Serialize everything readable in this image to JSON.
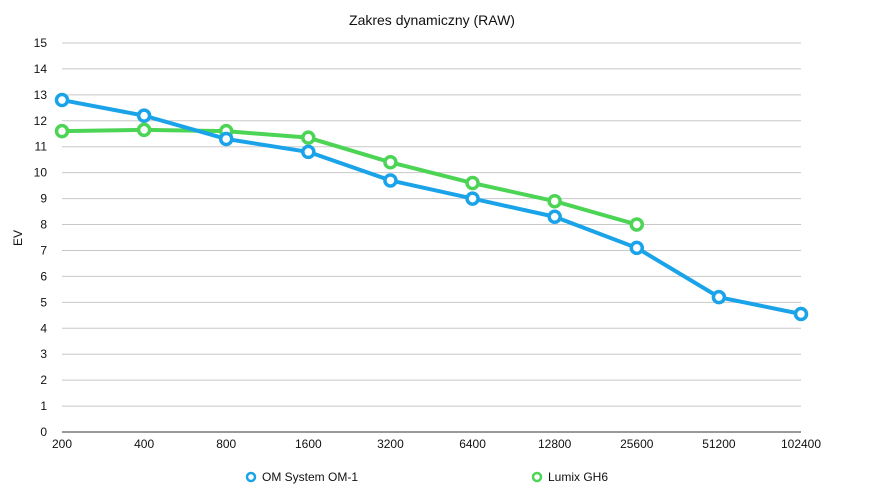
{
  "chart_data": {
    "type": "line",
    "title": "Zakres dynamiczny (RAW)",
    "xlabel": "",
    "ylabel": "EV",
    "ylim": [
      0,
      15
    ],
    "yticks": [
      0,
      1,
      2,
      3,
      4,
      5,
      6,
      7,
      8,
      9,
      10,
      11,
      12,
      13,
      14,
      15
    ],
    "categories": [
      "200",
      "400",
      "800",
      "1600",
      "3200",
      "6400",
      "12800",
      "25600",
      "51200",
      "102400"
    ],
    "grid": true,
    "legend_position": "bottom",
    "series": [
      {
        "name": "OM System OM-1",
        "color": "#1aa3e8",
        "values": [
          12.8,
          12.2,
          11.3,
          10.8,
          9.7,
          9.0,
          8.3,
          7.1,
          5.2,
          4.55
        ]
      },
      {
        "name": "Lumix GH6",
        "color": "#4cd455",
        "values": [
          11.6,
          11.65,
          11.6,
          11.35,
          10.4,
          9.6,
          8.9,
          8.0,
          null,
          null
        ]
      }
    ]
  }
}
